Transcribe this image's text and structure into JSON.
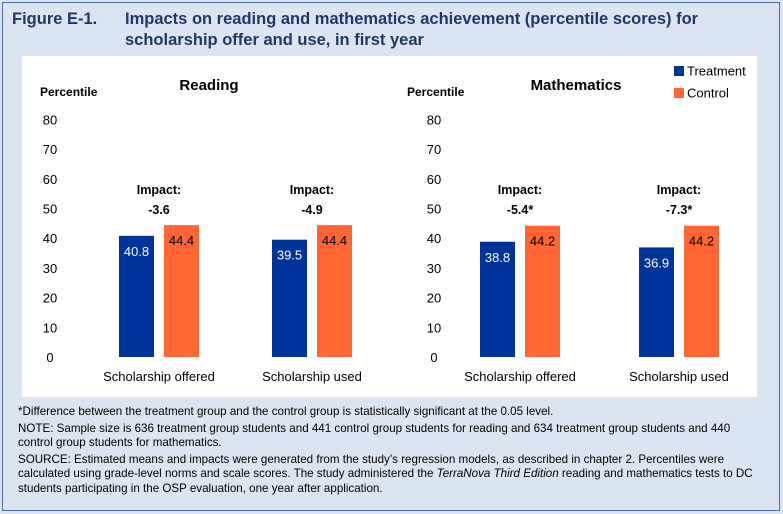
{
  "figure": {
    "label": "Figure E-1.",
    "title": "Impacts on reading and mathematics achievement (percentile scores) for scholarship offer and use, in first year"
  },
  "legend": {
    "treatment_label": "Treatment",
    "control_label": "Control"
  },
  "colors": {
    "treatment": "#003399",
    "control": "#ff6633",
    "title_text": "#1f3864",
    "background": "#dbe5f1"
  },
  "chart_data": [
    {
      "type": "bar",
      "title": "Reading",
      "ylabel": "Percentile",
      "ylim": [
        0,
        80
      ],
      "yticks": [
        0,
        10,
        20,
        30,
        40,
        50,
        60,
        70,
        80
      ],
      "categories": [
        "Scholarship offered",
        "Scholarship used"
      ],
      "series": [
        {
          "name": "Treatment",
          "values": [
            40.8,
            39.5
          ],
          "labels": [
            "40.8",
            "39.5"
          ]
        },
        {
          "name": "Control",
          "values": [
            44.4,
            44.4
          ],
          "labels": [
            "44.4",
            "44.4"
          ]
        }
      ],
      "impact_label": "Impact:",
      "impacts": [
        "-3.6",
        "-4.9"
      ]
    },
    {
      "type": "bar",
      "title": "Mathematics",
      "ylabel": "Percentile",
      "ylim": [
        0,
        80
      ],
      "yticks": [
        0,
        10,
        20,
        30,
        40,
        50,
        60,
        70,
        80
      ],
      "categories": [
        "Scholarship offered",
        "Scholarship used"
      ],
      "series": [
        {
          "name": "Treatment",
          "values": [
            38.8,
            36.9
          ],
          "labels": [
            "38.8",
            "36.9"
          ]
        },
        {
          "name": "Control",
          "values": [
            44.2,
            44.2
          ],
          "labels": [
            "44.2",
            "44.2"
          ]
        }
      ],
      "impact_label": "Impact:",
      "impacts": [
        "-5.4*",
        "-7.3*"
      ]
    }
  ],
  "notes": {
    "significance": "*Difference between the treatment group and the control group is statistically significant at the 0.05 level.",
    "note": "NOTE: Sample size is 636 treatment group students and 441 control group students for reading and 634 treatment group students and 440 control group students for mathematics.",
    "source_a": "SOURCE: Estimated means and impacts were generated from the study’s regression models, as described in chapter 2. Percentiles were calculated using grade-level norms and scale scores. The study administered the ",
    "source_italic": "TerraNova Third Edition",
    "source_b": " reading and mathematics tests to DC students participating in the OSP evaluation, one year after application."
  }
}
